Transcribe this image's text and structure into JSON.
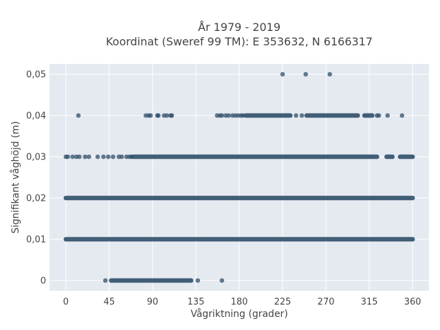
{
  "chart_data": {
    "type": "scatter",
    "title_lines": [
      "År 1979 - 2019",
      "Koordinat (Sweref 99 TM): E 353632, N 6166317"
    ],
    "xlabel": "Vågriktning (grader)",
    "ylabel": "Signifikant våghöjd (m)",
    "xlim": [
      -17,
      377
    ],
    "ylim": [
      -0.0025,
      0.0525
    ],
    "x_ticks": [
      0,
      45,
      90,
      135,
      180,
      225,
      270,
      315,
      360
    ],
    "y_ticks": [
      0,
      0.01,
      0.02,
      0.03,
      0.04,
      0.05
    ],
    "y_tick_labels": [
      "0",
      "0,01",
      "0,02",
      "0,03",
      "0,04",
      "0,05"
    ],
    "grid": true,
    "marker_color": "#2f4f69",
    "plot_background": "#e5e9f0",
    "series": [
      {
        "name": "",
        "bands": [
          {
            "y": 0,
            "x_ranges": [
              [
                47,
                130
              ]
            ]
          },
          {
            "y": 0.01,
            "x_ranges": [
              [
                0,
                360
              ]
            ]
          },
          {
            "y": 0.02,
            "x_ranges": [
              [
                0,
                360
              ]
            ]
          },
          {
            "y": 0.03,
            "x_ranges": [
              [
                70,
                323
              ],
              [
                333,
                339
              ],
              [
                347,
                360
              ]
            ]
          },
          {
            "y": 0.04,
            "x_ranges": [
              [
                187,
                233
              ],
              [
                250,
                303
              ],
              [
                310,
                318
              ]
            ]
          }
        ],
        "points": [
          [
            41,
            0
          ],
          [
            137,
            0
          ],
          [
            162,
            0
          ],
          [
            0,
            0.03
          ],
          [
            2,
            0.03
          ],
          [
            7,
            0.03
          ],
          [
            11,
            0.03
          ],
          [
            14,
            0.03
          ],
          [
            20,
            0.03
          ],
          [
            24,
            0.03
          ],
          [
            33,
            0.03
          ],
          [
            39,
            0.03
          ],
          [
            44,
            0.03
          ],
          [
            49,
            0.03
          ],
          [
            55,
            0.03
          ],
          [
            58,
            0.03
          ],
          [
            63,
            0.03
          ],
          [
            66,
            0.03
          ],
          [
            68,
            0.03
          ],
          [
            13,
            0.04
          ],
          [
            83,
            0.04
          ],
          [
            86,
            0.04
          ],
          [
            88,
            0.04
          ],
          [
            95,
            0.04
          ],
          [
            96,
            0.04
          ],
          [
            102,
            0.04
          ],
          [
            105,
            0.04
          ],
          [
            109,
            0.04
          ],
          [
            110,
            0.04
          ],
          [
            157,
            0.04
          ],
          [
            160,
            0.04
          ],
          [
            162,
            0.04
          ],
          [
            166,
            0.04
          ],
          [
            169,
            0.04
          ],
          [
            173,
            0.04
          ],
          [
            176,
            0.04
          ],
          [
            179,
            0.04
          ],
          [
            182,
            0.04
          ],
          [
            184,
            0.04
          ],
          [
            239,
            0.04
          ],
          [
            245,
            0.04
          ],
          [
            323,
            0.04
          ],
          [
            325,
            0.04
          ],
          [
            334,
            0.04
          ],
          [
            349,
            0.04
          ],
          [
            225,
            0.05
          ],
          [
            249,
            0.05
          ],
          [
            274,
            0.05
          ]
        ]
      }
    ]
  }
}
